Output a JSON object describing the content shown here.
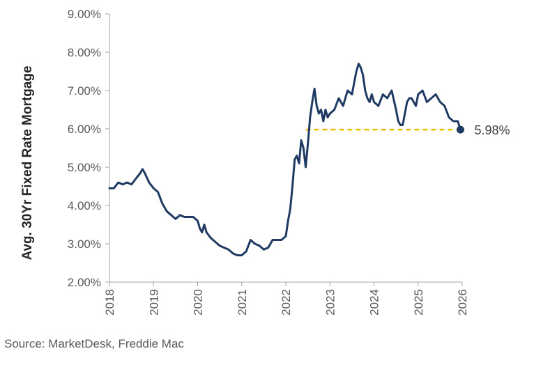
{
  "chart_data": {
    "type": "line",
    "title": "",
    "xlabel": "",
    "ylabel": "Avg. 30Yr Fixed Rate Mortgage",
    "xlim": [
      2018,
      2026
    ],
    "ylim": [
      2.0,
      9.0
    ],
    "x_ticks": [
      "2018",
      "2019",
      "2020",
      "2021",
      "2022",
      "2023",
      "2024",
      "2025",
      "2026"
    ],
    "y_ticks": [
      "2.00%",
      "3.00%",
      "4.00%",
      "5.00%",
      "6.00%",
      "7.00%",
      "8.00%",
      "9.00%"
    ],
    "grid": false,
    "legend": "none",
    "series": [
      {
        "color": "#1f3b63",
        "x": [
          2018.0,
          2018.1,
          2018.2,
          2018.3,
          2018.4,
          2018.5,
          2018.6,
          2018.7,
          2018.75,
          2018.8,
          2018.9,
          2019.0,
          2019.1,
          2019.2,
          2019.3,
          2019.4,
          2019.5,
          2019.6,
          2019.7,
          2019.8,
          2019.9,
          2020.0,
          2020.05,
          2020.1,
          2020.15,
          2020.2,
          2020.3,
          2020.4,
          2020.5,
          2020.6,
          2020.7,
          2020.8,
          2020.9,
          2021.0,
          2021.05,
          2021.1,
          2021.2,
          2021.3,
          2021.4,
          2021.5,
          2021.6,
          2021.7,
          2021.8,
          2021.9,
          2022.0,
          2022.05,
          2022.1,
          2022.15,
          2022.2,
          2022.25,
          2022.3,
          2022.35,
          2022.4,
          2022.45,
          2022.5,
          2022.55,
          2022.6,
          2022.65,
          2022.7,
          2022.75,
          2022.8,
          2022.85,
          2022.9,
          2022.95,
          2023.0,
          2023.1,
          2023.2,
          2023.3,
          2023.4,
          2023.5,
          2023.55,
          2023.6,
          2023.65,
          2023.7,
          2023.75,
          2023.8,
          2023.85,
          2023.9,
          2023.95,
          2024.0,
          2024.1,
          2024.2,
          2024.3,
          2024.4,
          2024.5,
          2024.55,
          2024.6,
          2024.65,
          2024.7,
          2024.75,
          2024.8,
          2024.85,
          2024.9,
          2024.95,
          2025.0,
          2025.1,
          2025.2,
          2025.3,
          2025.4,
          2025.5,
          2025.6,
          2025.7,
          2025.8,
          2025.9,
          2025.96
        ],
        "y": [
          4.45,
          4.45,
          4.6,
          4.55,
          4.6,
          4.55,
          4.7,
          4.85,
          4.95,
          4.85,
          4.6,
          4.45,
          4.35,
          4.05,
          3.85,
          3.75,
          3.65,
          3.75,
          3.7,
          3.7,
          3.7,
          3.6,
          3.4,
          3.3,
          3.5,
          3.3,
          3.15,
          3.05,
          2.95,
          2.9,
          2.85,
          2.75,
          2.7,
          2.7,
          2.75,
          2.8,
          3.1,
          3.0,
          2.95,
          2.85,
          2.9,
          3.1,
          3.1,
          3.1,
          3.2,
          3.6,
          3.9,
          4.5,
          5.2,
          5.3,
          5.1,
          5.7,
          5.5,
          5.0,
          5.6,
          6.3,
          6.7,
          7.05,
          6.6,
          6.4,
          6.5,
          6.2,
          6.5,
          6.3,
          6.4,
          6.5,
          6.8,
          6.6,
          7.0,
          6.9,
          7.2,
          7.5,
          7.7,
          7.6,
          7.4,
          7.0,
          6.8,
          6.7,
          6.9,
          6.7,
          6.6,
          6.9,
          6.8,
          7.0,
          6.5,
          6.2,
          6.1,
          6.1,
          6.4,
          6.7,
          6.8,
          6.8,
          6.7,
          6.6,
          6.9,
          7.0,
          6.7,
          6.8,
          6.9,
          6.7,
          6.6,
          6.3,
          6.2,
          6.2,
          5.98
        ]
      }
    ],
    "reference_line": {
      "y": 5.98,
      "x_start": 2022.45,
      "x_end": 2025.96,
      "color": "#f5b800",
      "style": "dashed"
    },
    "end_point": {
      "x": 2025.96,
      "y": 5.98,
      "label": "5.98%"
    }
  },
  "source": "Source: MarketDesk, Freddie Mac"
}
